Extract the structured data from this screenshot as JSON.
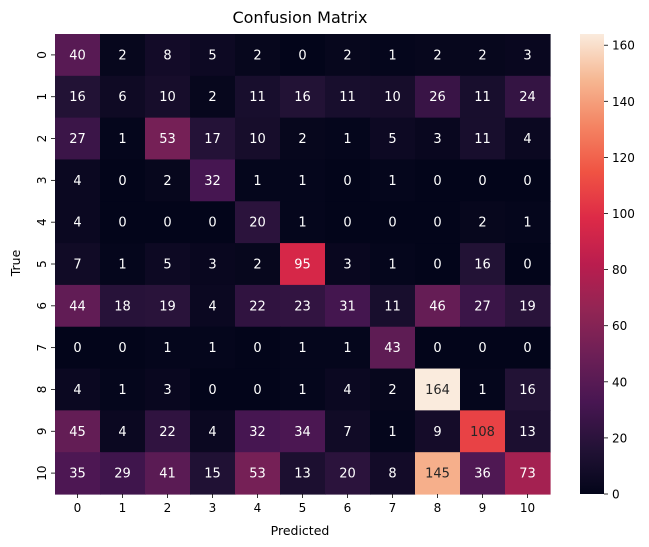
{
  "chart_data": {
    "type": "heatmap",
    "title": "Confusion Matrix",
    "xlabel": "Predicted",
    "ylabel": "True",
    "x_categories": [
      "0",
      "1",
      "2",
      "3",
      "4",
      "5",
      "6",
      "7",
      "8",
      "9",
      "10"
    ],
    "y_categories": [
      "0",
      "1",
      "2",
      "3",
      "4",
      "5",
      "6",
      "7",
      "8",
      "9",
      "10"
    ],
    "values": [
      [
        40,
        2,
        8,
        5,
        2,
        0,
        2,
        1,
        2,
        2,
        3
      ],
      [
        16,
        6,
        10,
        2,
        11,
        16,
        11,
        10,
        26,
        11,
        24
      ],
      [
        27,
        1,
        53,
        17,
        10,
        2,
        1,
        5,
        3,
        11,
        4
      ],
      [
        4,
        0,
        2,
        32,
        1,
        1,
        0,
        1,
        0,
        0,
        0
      ],
      [
        4,
        0,
        0,
        0,
        20,
        1,
        0,
        0,
        0,
        2,
        1
      ],
      [
        7,
        1,
        5,
        3,
        2,
        95,
        3,
        1,
        0,
        16,
        0
      ],
      [
        44,
        18,
        19,
        4,
        22,
        23,
        31,
        11,
        46,
        27,
        19
      ],
      [
        0,
        0,
        1,
        1,
        0,
        1,
        1,
        43,
        0,
        0,
        0
      ],
      [
        4,
        1,
        3,
        0,
        0,
        1,
        4,
        2,
        164,
        1,
        16
      ],
      [
        45,
        4,
        22,
        4,
        32,
        34,
        7,
        1,
        9,
        108,
        13
      ],
      [
        35,
        29,
        41,
        15,
        53,
        13,
        20,
        8,
        145,
        36,
        73
      ]
    ],
    "colorbar": {
      "min": 0,
      "max": 164,
      "ticks": [
        "0",
        "20",
        "40",
        "60",
        "80",
        "100",
        "120",
        "140",
        "160"
      ],
      "colormap": "rocket"
    }
  }
}
